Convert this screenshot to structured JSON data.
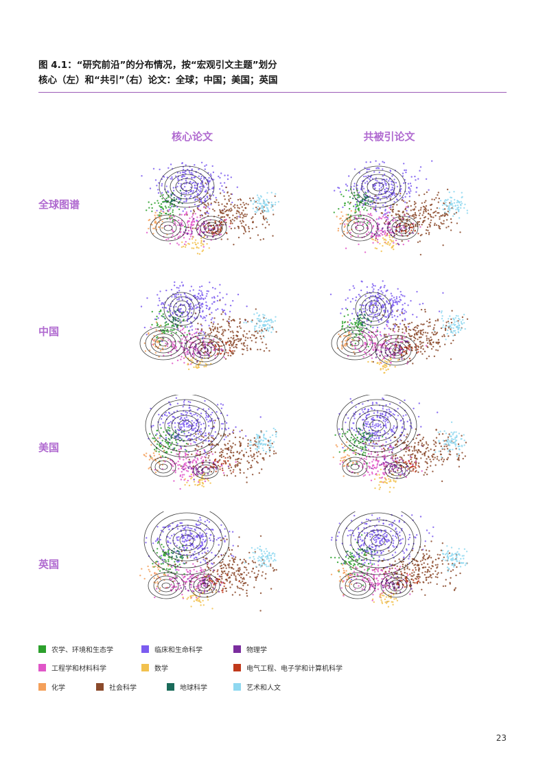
{
  "figure": {
    "title_line1": "图 4.1：“研究前沿”的分布情况，按“宏观引文主题”划分",
    "title_line2": "核心（左）和“共引”（右）论文：全球；中国；美国；英国"
  },
  "columns": [
    "核心论文",
    "共被引论文"
  ],
  "rows": [
    "全球图谱",
    "中国",
    "美国",
    "英国"
  ],
  "legend": [
    {
      "label": "农学、环境和生态学",
      "color": "#2ca02c"
    },
    {
      "label": "临床和生命科学",
      "color": "#7b5cf0"
    },
    {
      "label": "物理学",
      "color": "#7b2d9e"
    },
    {
      "label": "工程学和材料科学",
      "color": "#e056c8"
    },
    {
      "label": "数学",
      "color": "#f2c14e"
    },
    {
      "label": "电气工程、电子学和计算机科学",
      "color": "#c0391b"
    },
    {
      "label": "化学",
      "color": "#f4a05a"
    },
    {
      "label": "社会科学",
      "color": "#8b4a2b"
    },
    {
      "label": "地球科学",
      "color": "#1a6b5a"
    },
    {
      "label": "艺术和人文",
      "color": "#8fd8f0"
    }
  ],
  "chart_data": {
    "type": "scatter",
    "x": [
      "核心论文",
      "共被引论文"
    ],
    "categories": [
      "全球图谱",
      "中国",
      "美国",
      "英国"
    ],
    "series": [
      {
        "name": "农学、环境和生态学"
      },
      {
        "name": "临床和生命科学"
      },
      {
        "name": "物理学"
      },
      {
        "name": "工程学和材料科学"
      },
      {
        "name": "数学"
      },
      {
        "name": "电气工程、电子学和计算机科学"
      },
      {
        "name": "化学"
      },
      {
        "name": "社会科学"
      },
      {
        "name": "地球科学"
      },
      {
        "name": "艺术和人文"
      }
    ],
    "grid": false,
    "legend_position": "bottom"
  },
  "page_number": "23"
}
